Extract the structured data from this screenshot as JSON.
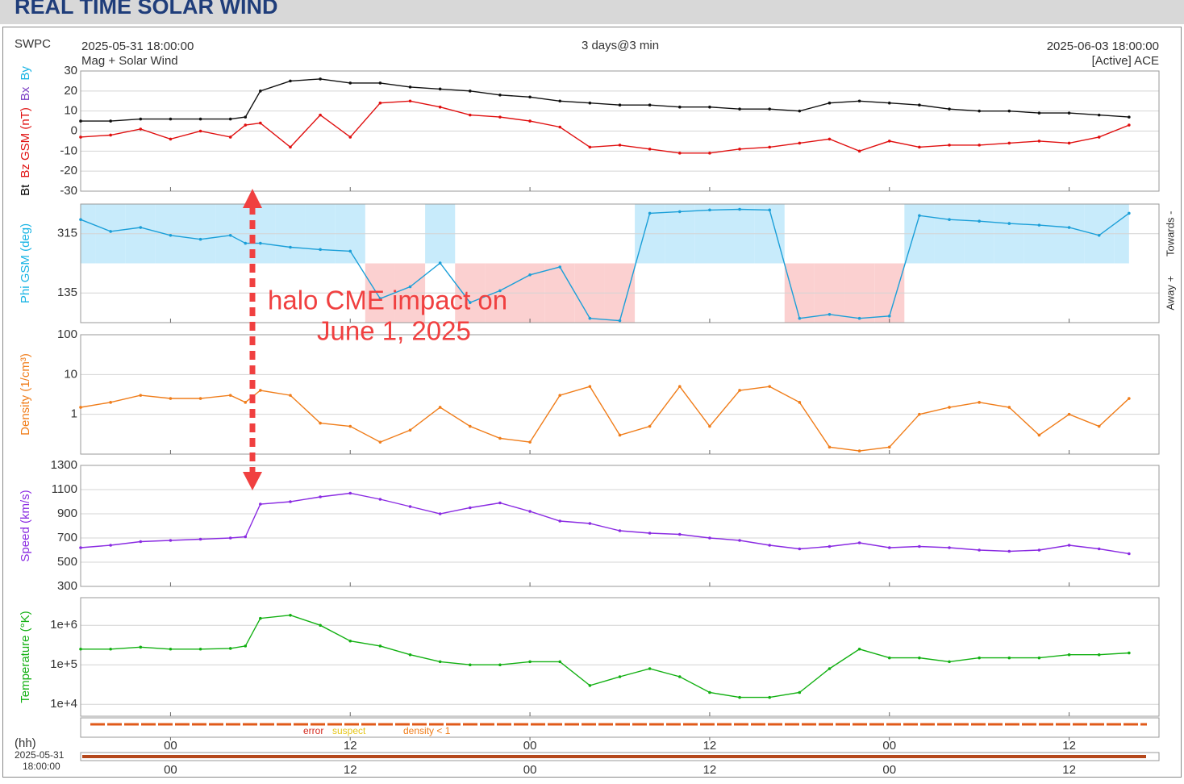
{
  "header": {
    "title": "REAL TIME SOLAR WIND",
    "source": "SWPC",
    "start": "2025-05-31 18:00:00",
    "span": "3 days@3 min",
    "end": "2025-06-03 18:00:00",
    "subtitle": "Mag + Solar Wind",
    "satellite": "[Active] ACE"
  },
  "annotation": {
    "lines": [
      "halo CME impact on",
      "June 1, 2025"
    ]
  },
  "status": {
    "labels": [
      {
        "text": "error",
        "color": "#d42a1e"
      },
      {
        "text": "suspect",
        "color": "#e6c619"
      },
      {
        "text": "density < 1",
        "color": "#f07d1a"
      }
    ]
  },
  "footer": {
    "unit": "(hh)",
    "date": "2025-05-31",
    "time": "18:00:00"
  },
  "chart_data": {
    "type": "line",
    "x": [
      0,
      2,
      4,
      6,
      8,
      10,
      11,
      12,
      14,
      16,
      18,
      20,
      22,
      24,
      26,
      28,
      30,
      32,
      34,
      36,
      38,
      40,
      42,
      44,
      46,
      48,
      50,
      52,
      54,
      56,
      58,
      60,
      62,
      64,
      66,
      68,
      70
    ],
    "xlim": [
      0,
      72
    ],
    "xticks": [
      {
        "value": 6,
        "label": "00"
      },
      {
        "value": 18,
        "label": "12"
      },
      {
        "value": 30,
        "label": "00"
      },
      {
        "value": 42,
        "label": "12"
      },
      {
        "value": 54,
        "label": "00"
      },
      {
        "value": 66,
        "label": "12"
      }
    ],
    "panels": [
      {
        "ylabel": [
          {
            "text": "Bt",
            "color": "#000000"
          },
          {
            "text": "Bz GSM (nT)",
            "color": "#e01010"
          },
          {
            "text": "Bx",
            "color": "#7b3fc4"
          },
          {
            "text": "By",
            "color": "#18b4e4"
          }
        ],
        "ylim": [
          -30,
          30
        ],
        "yticks": [
          -30,
          -20,
          -10,
          0,
          10,
          20,
          30
        ],
        "log": false,
        "series": [
          {
            "name": "Bt",
            "color": "#111111",
            "values": [
              5,
              5,
              6,
              6,
              6,
              6,
              7,
              20,
              25,
              26,
              24,
              24,
              22,
              21,
              20,
              18,
              17,
              15,
              14,
              13,
              13,
              12,
              12,
              11,
              11,
              10,
              14,
              15,
              14,
              13,
              11,
              10,
              10,
              9,
              9,
              8,
              7
            ]
          },
          {
            "name": "Bz",
            "color": "#e01010",
            "values": [
              -3,
              -2,
              1,
              -4,
              0,
              -3,
              3,
              4,
              -8,
              8,
              -3,
              14,
              15,
              12,
              8,
              7,
              5,
              2,
              -8,
              -7,
              -9,
              -11,
              -11,
              -9,
              -8,
              -6,
              -4,
              -10,
              -5,
              -8,
              -7,
              -7,
              -6,
              -5,
              -6,
              -3,
              3
            ]
          }
        ]
      },
      {
        "ylabel": [
          {
            "text": "Phi GSM (deg)",
            "color": "#18b4e4"
          }
        ],
        "right_labels": [
          "Towards -",
          "Away +"
        ],
        "ylim": [
          45,
          405
        ],
        "yticks": [
          135,
          315
        ],
        "log": false,
        "sector": true,
        "series": [
          {
            "name": "Phi",
            "color": "#1b9fd8",
            "values": [
              358,
              322,
              334,
              310,
              298,
              310,
              286,
              286,
              274,
              267,
              262,
              118,
              154,
              226,
              106,
              142,
              190,
              214,
              58,
              51,
              377,
              382,
              387,
              389,
              387,
              58,
              70,
              58,
              65,
              370,
              358,
              353,
              346,
              341,
              334,
              310,
              377
            ]
          }
        ]
      },
      {
        "ylabel": [
          {
            "text": "Density (1/cm³)",
            "color": "#f07d1a"
          }
        ],
        "ylim": [
          0.1,
          100
        ],
        "yticks": [
          1,
          10,
          100
        ],
        "log": true,
        "series": [
          {
            "name": "Density",
            "color": "#f07d1a",
            "values": [
              1.5,
              2,
              3,
              2.5,
              2.5,
              3,
              2,
              4,
              3,
              0.6,
              0.5,
              0.2,
              0.4,
              1.5,
              0.5,
              0.25,
              0.2,
              3,
              5,
              0.3,
              0.5,
              5,
              0.5,
              4,
              5,
              2,
              0.15,
              0.12,
              0.15,
              1,
              1.5,
              2,
              1.5,
              0.3,
              1,
              0.5,
              2.5
            ]
          }
        ]
      },
      {
        "ylabel": [
          {
            "text": "Speed (km/s)",
            "color": "#8a2be2"
          }
        ],
        "ylim": [
          300,
          1300
        ],
        "yticks": [
          300,
          500,
          700,
          900,
          1100,
          1300
        ],
        "log": false,
        "series": [
          {
            "name": "Speed",
            "color": "#8a2be2",
            "values": [
              620,
              640,
              670,
              680,
              690,
              700,
              710,
              980,
              1000,
              1040,
              1070,
              1020,
              960,
              900,
              950,
              990,
              920,
              840,
              820,
              760,
              740,
              730,
              700,
              680,
              640,
              610,
              630,
              660,
              620,
              630,
              620,
              600,
              590,
              600,
              640,
              610,
              570
            ]
          }
        ]
      },
      {
        "ylabel": [
          {
            "text": "Temperature (°K)",
            "color": "#12b012"
          }
        ],
        "ylim": [
          5000,
          5000000
        ],
        "yticks": [
          {
            "value": 10000,
            "label": "1e+4"
          },
          {
            "value": 100000,
            "label": "1e+5"
          },
          {
            "value": 1000000,
            "label": "1e+6"
          }
        ],
        "log": true,
        "series": [
          {
            "name": "Temperature",
            "color": "#12b012",
            "values": [
              250000,
              250000,
              280000,
              250000,
              250000,
              260000,
              300000,
              1500000,
              1800000,
              1000000,
              400000,
              300000,
              180000,
              120000,
              100000,
              100000,
              120000,
              120000,
              30000,
              50000,
              80000,
              50000,
              20000,
              15000,
              15000,
              20000,
              80000,
              250000,
              150000,
              150000,
              120000,
              150000,
              150000,
              150000,
              180000,
              180000,
              200000
            ]
          }
        ]
      }
    ]
  }
}
